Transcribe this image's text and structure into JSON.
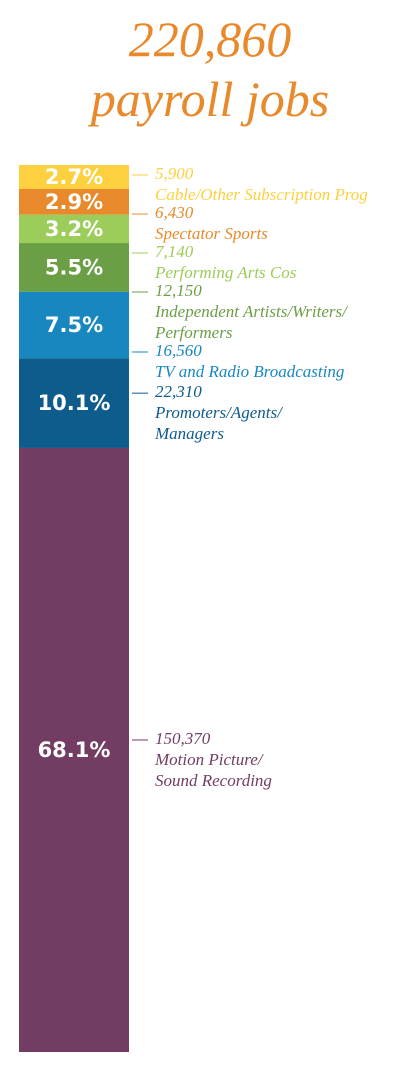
{
  "chart_data": {
    "type": "stacked_bar",
    "title": [
      "220,860",
      "payroll jobs"
    ],
    "categories": [
      "Cable/Other Subscription Prog",
      "Spectator Sports",
      "Performing Arts Cos",
      "Independent Artists/Writers/ Performers",
      "TV and Radio Broadcasting",
      "Promoters/Agents/ Managers",
      "Motion Picture/ Sound Recording"
    ],
    "values": [
      2.7,
      2.9,
      3.2,
      5.5,
      7.5,
      10.1,
      68.1
    ],
    "value_labels": [
      "2.7%",
      "2.9%",
      "3.2%",
      "5.5%",
      "7.5%",
      "10.1%",
      "68.1%"
    ],
    "counts": [
      5900,
      6430,
      7140,
      12150,
      16560,
      22310,
      150370
    ],
    "count_labels": [
      "5,900",
      "6,430",
      "7,140",
      "12,150",
      "16,560",
      "22,310",
      "150,370"
    ],
    "colors": [
      "#fcd03f",
      "#e8892b",
      "#9ccc59",
      "#6b9f45",
      "#1887c0",
      "#0d5c8c",
      "#733c63"
    ]
  }
}
